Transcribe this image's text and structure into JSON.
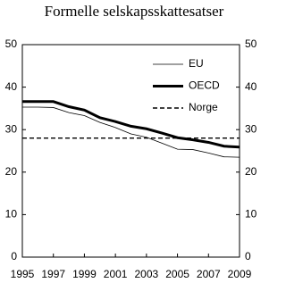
{
  "chart_data": {
    "type": "line",
    "title": "Formelle selskapsskattesatser",
    "x": [
      1995,
      1996,
      1997,
      1998,
      1999,
      2000,
      2001,
      2002,
      2003,
      2004,
      2005,
      2006,
      2007,
      2008,
      2009
    ],
    "xlim": [
      1995,
      2009
    ],
    "xticks": [
      1995,
      1997,
      1999,
      2001,
      2003,
      2005,
      2007,
      2009
    ],
    "ylim": [
      0,
      50
    ],
    "yticks": [
      0,
      10,
      20,
      30,
      40,
      50
    ],
    "y2lim": [
      0,
      50
    ],
    "y2ticks": [
      0,
      10,
      20,
      30,
      40,
      50
    ],
    "grid": false,
    "legend": "upper right",
    "series": [
      {
        "name": "EU",
        "color": "#000000",
        "values": [
          35.3,
          35.3,
          35.2,
          34.0,
          33.3,
          31.7,
          30.5,
          29.0,
          28.2,
          26.8,
          25.4,
          25.3,
          24.5,
          23.6,
          23.5
        ]
      },
      {
        "name": "OECD",
        "color": "#000000",
        "values": [
          36.6,
          36.6,
          36.6,
          35.4,
          34.6,
          32.8,
          31.9,
          30.8,
          30.2,
          29.2,
          28.1,
          27.6,
          27.0,
          26.1,
          25.9
        ]
      },
      {
        "name": "Norge",
        "color": "#000000",
        "values": [
          28,
          28,
          28,
          28,
          28,
          28,
          28,
          28,
          28,
          28,
          28,
          28,
          28,
          28,
          28
        ]
      }
    ]
  }
}
